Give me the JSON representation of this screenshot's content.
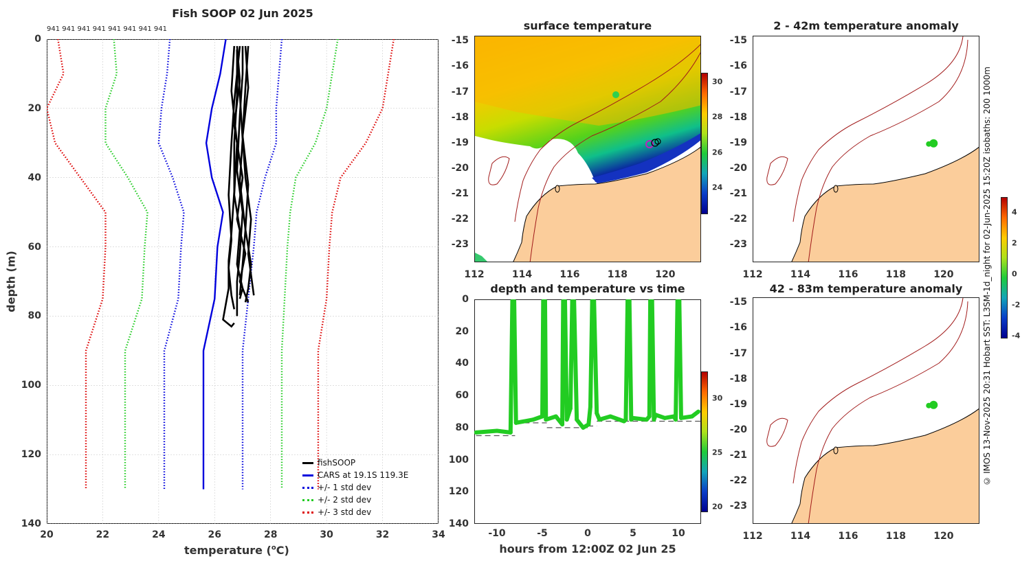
{
  "main_title": "Fish SOOP 02 Jun 2025",
  "sample_counts": "941 941 941 941 941 941 941 941",
  "credit": "© IMOS 13-Nov-2025 20:31 Hobart SST: L3SM-1d_night for 02-Jun-2025 15:20Z isobaths: 200  1000m",
  "colors": {
    "fishsoop": "#000000",
    "cars": "#0000dd",
    "std1": "#0000dd",
    "std2": "#22cc22",
    "std3": "#dd0000",
    "land": "#fbcd9b",
    "isobath": "#a11a1a",
    "track": "#22cc22"
  },
  "chart_data": [
    {
      "id": "profile",
      "type": "line",
      "title": "Fish SOOP 02 Jun 2025",
      "xlabel": "temperature (°C)",
      "xlabel_main": "temperature (",
      "xlabel_sup": "o",
      "xlabel_end": "C)",
      "ylabel": "depth (m)",
      "xlim": [
        20,
        34
      ],
      "ylim": [
        0,
        140
      ],
      "xticks": [
        "20",
        "22",
        "24",
        "26",
        "28",
        "30",
        "32",
        "34"
      ],
      "yticks": [
        "0",
        "20",
        "40",
        "60",
        "80",
        "100",
        "120",
        "140"
      ],
      "series": [
        {
          "name": "CARS at 19.1S 119.3E",
          "style": "solid",
          "color": "#0000dd",
          "temp": [
            26.4,
            26.2,
            25.9,
            25.7,
            25.9,
            26.3,
            26.1,
            26.0,
            25.6,
            25.6
          ],
          "depth": [
            0,
            10,
            20,
            30,
            40,
            50,
            60,
            75,
            90,
            130
          ]
        },
        {
          "name": "+/- 1 std dev",
          "style": "dotted",
          "color": "#0000dd",
          "temp": [
            24.4,
            24.3,
            24.1,
            24.0,
            24.5,
            24.9,
            24.8,
            24.7,
            24.2,
            24.2
          ],
          "temp_hi": [
            28.4,
            28.3,
            28.2,
            28.2,
            27.8,
            27.5,
            27.4,
            27.2,
            27.0,
            27.0
          ],
          "depth": [
            0,
            10,
            20,
            30,
            40,
            50,
            60,
            75,
            90,
            130
          ]
        },
        {
          "name": "+/- 2 std dev",
          "style": "dotted",
          "color": "#22cc22",
          "temp": [
            22.4,
            22.5,
            22.1,
            22.1,
            22.9,
            23.6,
            23.5,
            23.4,
            22.8,
            22.8
          ],
          "temp_hi": [
            30.4,
            30.2,
            30.0,
            29.6,
            28.9,
            28.7,
            28.6,
            28.5,
            28.4,
            28.4
          ],
          "depth": [
            0,
            10,
            20,
            30,
            40,
            50,
            60,
            75,
            90,
            130
          ]
        },
        {
          "name": "+/- 3 std dev",
          "style": "dotted",
          "color": "#dd0000",
          "temp": [
            20.4,
            20.6,
            20.0,
            20.3,
            21.2,
            22.1,
            22.1,
            22.0,
            21.4,
            21.4
          ],
          "temp_hi": [
            32.4,
            32.2,
            32.0,
            31.4,
            30.5,
            30.2,
            30.1,
            30.0,
            29.7,
            29.7
          ],
          "depth": [
            0,
            10,
            20,
            30,
            40,
            50,
            60,
            75,
            90,
            130
          ]
        },
        {
          "name": "fishSOOP",
          "style": "solid",
          "color": "#000000",
          "casts": [
            {
              "temp": [
                26.7,
                26.6,
                26.8,
                26.7,
                26.9,
                26.8,
                27.0,
                26.9
              ],
              "depth": [
                2,
                15,
                30,
                45,
                55,
                65,
                72,
                75
              ]
            },
            {
              "temp": [
                26.8,
                26.9,
                26.7,
                27.0,
                26.8,
                27.1,
                26.9,
                27.2
              ],
              "depth": [
                2,
                12,
                25,
                40,
                52,
                62,
                70,
                76
              ]
            },
            {
              "temp": [
                27.2,
                27.1,
                27.0,
                27.2,
                27.1,
                27.3,
                27.2,
                27.1
              ],
              "depth": [
                2,
                14,
                28,
                42,
                55,
                65,
                72,
                76
              ]
            },
            {
              "temp": [
                26.9,
                26.7,
                26.6,
                26.5,
                26.6,
                26.5,
                26.6,
                26.7
              ],
              "depth": [
                2,
                18,
                30,
                45,
                58,
                66,
                74,
                78
              ]
            },
            {
              "temp": [
                27.0,
                27.0,
                26.9,
                26.8,
                27.0,
                26.9,
                26.8,
                26.8
              ],
              "depth": [
                2,
                10,
                22,
                38,
                50,
                62,
                70,
                80
              ]
            },
            {
              "temp": [
                26.8,
                26.8,
                26.7,
                26.7,
                26.6,
                26.5,
                26.5,
                26.3,
                26.6,
                26.7
              ],
              "depth": [
                3,
                16,
                30,
                44,
                56,
                64,
                72,
                81,
                83,
                82
              ]
            },
            {
              "temp": [
                27.1,
                27.2,
                27.0,
                27.1,
                27.3,
                27.2,
                27.4
              ],
              "depth": [
                2,
                14,
                28,
                40,
                52,
                62,
                74
              ]
            },
            {
              "temp": [
                26.8,
                26.9,
                27.0,
                26.9,
                27.1,
                27.0,
                26.9
              ],
              "depth": [
                3,
                16,
                29,
                41,
                55,
                65,
                74
              ]
            }
          ]
        }
      ],
      "legend": [
        {
          "label": "fishSOOP",
          "style": "solid",
          "color": "#000000"
        },
        {
          "label": "CARS at 19.1S 119.3E",
          "style": "solid",
          "color": "#0000dd"
        },
        {
          "label": "+/- 1 std dev",
          "style": "dotted",
          "color": "#0000dd"
        },
        {
          "label": "+/- 2 std dev",
          "style": "dotted",
          "color": "#22cc22"
        },
        {
          "label": "+/- 3 std dev",
          "style": "dotted",
          "color": "#dd0000"
        }
      ]
    },
    {
      "id": "sst_map",
      "type": "heatmap",
      "title": "surface temperature",
      "xlim": [
        112,
        121.5
      ],
      "ylim": [
        -23.7,
        -14.8
      ],
      "xticks": [
        "112",
        "114",
        "116",
        "118",
        "120"
      ],
      "yticks": [
        "-15",
        "-16",
        "-17",
        "-18",
        "-19",
        "-20",
        "-21",
        "-22",
        "-23"
      ],
      "colorbar": {
        "range": [
          22.5,
          30.5
        ],
        "ticks": [
          "30",
          "28",
          "26",
          "24"
        ]
      },
      "vessel_position": {
        "lon": 119.5,
        "lat": -19.05
      }
    },
    {
      "id": "depth_time",
      "type": "scatter",
      "title": "depth and temperature vs time",
      "xlabel": "hours from 12:00Z 02 Jun 25",
      "xlim": [
        -12.5,
        12.5
      ],
      "ylim": [
        0,
        140
      ],
      "xticks": [
        "-10",
        "-5",
        "0",
        "5",
        "10"
      ],
      "yticks": [
        "0",
        "20",
        "40",
        "60",
        "80",
        "100",
        "120",
        "140"
      ],
      "colorbar": {
        "range": [
          19.5,
          32.5
        ],
        "ticks": [
          "30",
          "25",
          "20"
        ]
      },
      "track": {
        "hours": [
          -12.3,
          -10,
          -8.5,
          -8.3,
          -8.1,
          -7.9,
          -6,
          -5,
          -4.9,
          -4.7,
          -4.6,
          -3.5,
          -2.8,
          -2.7,
          -2.5,
          -2.3,
          -1.9,
          -1.7,
          -1.5,
          -1.2,
          -0.5,
          0.1,
          0.3,
          0.5,
          0.7,
          1.0,
          1.3,
          2.5,
          4.0,
          4.2,
          4.4,
          4.6,
          4.8,
          5.0,
          6.5,
          6.8,
          6.9,
          7.1,
          7.3,
          7.5,
          8.5,
          9.5,
          9.7,
          9.9,
          10.1,
          10.3,
          11.5,
          12.2
        ],
        "depth": [
          83,
          82,
          83,
          1,
          1,
          77,
          75,
          73,
          1,
          1,
          75,
          73,
          78,
          1,
          1,
          75,
          68,
          1,
          1,
          75,
          80,
          78,
          67,
          1,
          1,
          71,
          75,
          73,
          76,
          75,
          1,
          1,
          75,
          74,
          75,
          73,
          1,
          1,
          75,
          72,
          74,
          73,
          75,
          1,
          1,
          74,
          73,
          70
        ]
      },
      "bottom_segments": [
        {
          "h0": -12.3,
          "h1": -8.0,
          "depth": 85
        },
        {
          "h0": -8.0,
          "h1": -4.5,
          "depth": 77
        },
        {
          "h0": -4.5,
          "h1": 0.0,
          "depth": 80
        },
        {
          "h0": 0.0,
          "h1": 1.0,
          "depth": 79
        },
        {
          "h0": 1.0,
          "h1": 12.5,
          "depth": 76
        }
      ]
    },
    {
      "id": "anom_2_42",
      "type": "heatmap",
      "title": "2 - 42m temperature anomaly",
      "xlim": [
        112,
        121.5
      ],
      "ylim": [
        -23.7,
        -14.8
      ],
      "xticks": [
        "112",
        "114",
        "116",
        "118",
        "120"
      ],
      "yticks": [
        "-15",
        "-16",
        "-17",
        "-18",
        "-19",
        "-20",
        "-21",
        "-22",
        "-23"
      ],
      "marker": {
        "lon": 119.55,
        "lat": -19.0
      }
    },
    {
      "id": "anom_42_83",
      "type": "heatmap",
      "title": "42 - 83m temperature anomaly",
      "xlim": [
        112,
        121.5
      ],
      "ylim": [
        -23.7,
        -14.8
      ],
      "xticks": [
        "112",
        "114",
        "116",
        "118",
        "120"
      ],
      "yticks": [
        "-15",
        "-16",
        "-17",
        "-18",
        "-19",
        "-20",
        "-21",
        "-22",
        "-23"
      ],
      "marker": {
        "lon": 119.55,
        "lat": -19.0
      }
    },
    {
      "id": "anom_colorbar",
      "type": "heatmap",
      "colorbar": {
        "range": [
          -4.2,
          5.0
        ],
        "ticks": [
          "4",
          "2",
          "0",
          "-2",
          "-4"
        ]
      }
    }
  ]
}
